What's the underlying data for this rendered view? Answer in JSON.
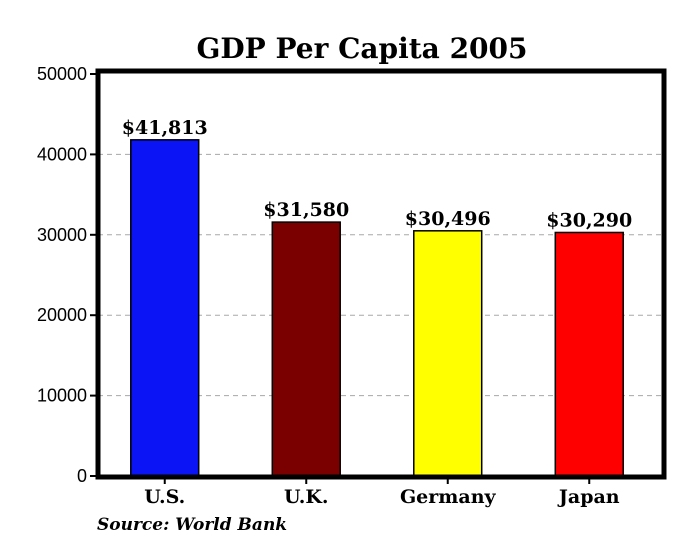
{
  "chart_data": {
    "type": "bar",
    "title": "GDP Per Capita 2005",
    "categories": [
      "U.S.",
      "U.K.",
      "Germany",
      "Japan"
    ],
    "values": [
      41813,
      31580,
      30496,
      30290
    ],
    "data_labels": [
      "$41,813",
      "$31,580",
      "$30,496",
      "$30,290"
    ],
    "colors": [
      "#0a14f5",
      "#7a0000",
      "#ffff00",
      "#ff0000"
    ],
    "xlabel": "",
    "ylabel": "",
    "ylim": [
      0,
      50000
    ],
    "yticks": [
      0,
      10000,
      20000,
      30000,
      40000,
      50000
    ],
    "ytick_labels": [
      "0",
      "10000",
      "20000",
      "30000",
      "40000",
      "50000"
    ],
    "grid": true,
    "legend": "none"
  },
  "source": "Source: World Bank"
}
